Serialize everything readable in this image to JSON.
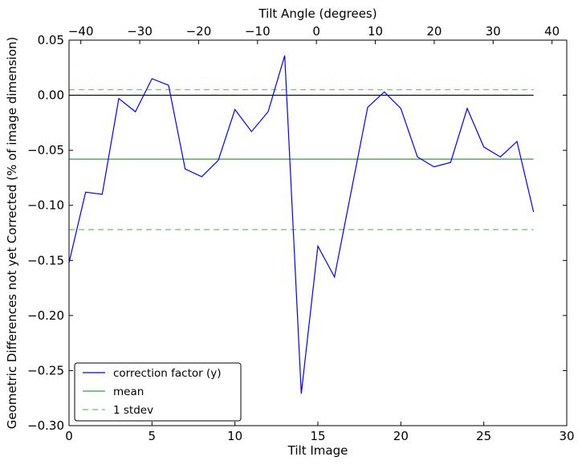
{
  "chart_data": {
    "type": "line",
    "title": "",
    "xlabel": "Tilt Image",
    "ylabel": "Geometric Differences not yet Corrected (% of image dimension)",
    "top_xlabel": "Tilt Angle (degrees)",
    "xlim": [
      0,
      30
    ],
    "ylim": [
      -0.3,
      0.05
    ],
    "top_xlim": [
      -42,
      42.5
    ],
    "x_ticks": [
      0,
      5,
      10,
      15,
      20,
      25,
      30
    ],
    "x_tick_labels": [
      "0",
      "5",
      "10",
      "15",
      "20",
      "25",
      "30"
    ],
    "y_ticks": [
      0.05,
      0.0,
      -0.05,
      -0.1,
      -0.15,
      -0.2,
      -0.25,
      -0.3
    ],
    "y_tick_labels": [
      "0.05",
      "0.00",
      "−0.05",
      "−0.10",
      "−0.15",
      "−0.20",
      "−0.25",
      "−0.30"
    ],
    "top_x_ticks": [
      -40,
      -30,
      -20,
      -10,
      0,
      10,
      20,
      30,
      40
    ],
    "top_x_tick_labels": [
      "−40",
      "−30",
      "−20",
      "−10",
      "0",
      "10",
      "20",
      "30",
      "40"
    ],
    "grid": false,
    "legend_position": "bottom-left",
    "series": [
      {
        "name": "correction factor (y)",
        "color": "#0000ff",
        "style": "solid",
        "x": [
          0,
          1,
          2,
          3,
          4,
          5,
          6,
          7,
          8,
          9,
          10,
          11,
          12,
          13,
          14,
          15,
          16,
          17,
          18,
          19,
          20,
          21,
          22,
          23,
          24,
          25,
          26,
          27,
          28
        ],
        "y": [
          -0.152,
          -0.088,
          -0.09,
          -0.003,
          -0.015,
          0.015,
          0.009,
          -0.067,
          -0.074,
          -0.059,
          -0.013,
          -0.033,
          -0.015,
          0.036,
          -0.271,
          -0.137,
          -0.165,
          -0.088,
          -0.011,
          0.003,
          -0.012,
          -0.056,
          -0.065,
          -0.061,
          -0.012,
          -0.047,
          -0.056,
          -0.042,
          -0.106
        ]
      },
      {
        "name": "mean",
        "color": "#3c9a3c",
        "style": "solid",
        "x": [
          0,
          28
        ],
        "y": [
          -0.058,
          -0.058
        ]
      },
      {
        "name": "1 stdev",
        "color": "#6cbf6c",
        "style": "dashed",
        "x": [
          0,
          28
        ],
        "y": [
          0.005,
          0.005
        ]
      },
      {
        "name": "",
        "color": "#6cbf6c",
        "style": "dashed",
        "x": [
          0,
          28
        ],
        "y": [
          -0.122,
          -0.122
        ]
      },
      {
        "name": "",
        "color": "#000000",
        "style": "solid",
        "x": [
          0,
          28
        ],
        "y": [
          0.0,
          0.0
        ]
      }
    ]
  }
}
